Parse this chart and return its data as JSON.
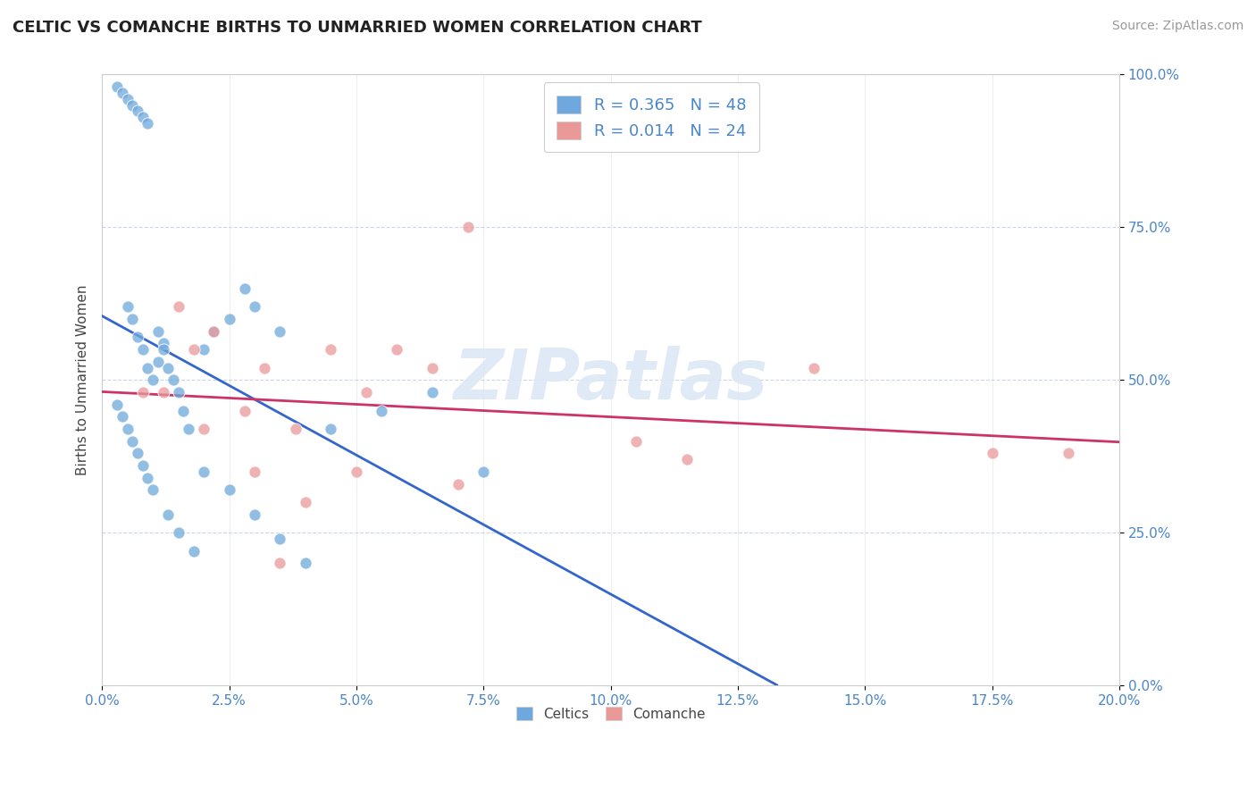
{
  "title": "CELTIC VS COMANCHE BIRTHS TO UNMARRIED WOMEN CORRELATION CHART",
  "source": "Source: ZipAtlas.com",
  "ylabel": "Births to Unmarried Women",
  "xlim": [
    0.0,
    20.0
  ],
  "ylim": [
    0.0,
    100.0
  ],
  "xticks": [
    0.0,
    2.5,
    5.0,
    7.5,
    10.0,
    12.5,
    15.0,
    17.5,
    20.0
  ],
  "yticks": [
    0.0,
    25.0,
    50.0,
    75.0,
    100.0
  ],
  "celtics_color": "#6fa8dc",
  "comanche_color": "#ea9999",
  "celtics_line_color": "#3366cc",
  "comanche_line_color": "#cc3366",
  "legend_celtics_R": "R = 0.365",
  "legend_celtics_N": "N = 48",
  "legend_comanche_R": "R = 0.014",
  "legend_comanche_N": "N = 24",
  "watermark": "ZIPatlas",
  "celtics_x": [
    0.3,
    0.4,
    0.5,
    0.6,
    0.7,
    0.8,
    0.9,
    0.5,
    0.6,
    0.7,
    0.8,
    0.9,
    1.0,
    1.1,
    1.2,
    0.3,
    0.4,
    0.5,
    0.6,
    0.7,
    0.8,
    0.9,
    1.0,
    1.1,
    1.2,
    1.3,
    1.4,
    1.5,
    1.6,
    1.7,
    2.0,
    2.2,
    2.5,
    2.8,
    3.0,
    3.5,
    4.5,
    5.5,
    6.5,
    7.5,
    1.3,
    1.5,
    1.8,
    2.0,
    2.5,
    3.0,
    3.5,
    4.0
  ],
  "celtics_y": [
    98,
    97,
    96,
    95,
    94,
    93,
    92,
    62,
    60,
    57,
    55,
    52,
    50,
    53,
    56,
    46,
    44,
    42,
    40,
    38,
    36,
    34,
    32,
    58,
    55,
    52,
    50,
    48,
    45,
    42,
    55,
    58,
    60,
    65,
    62,
    58,
    42,
    45,
    48,
    35,
    28,
    25,
    22,
    35,
    32,
    28,
    24,
    20
  ],
  "comanche_x": [
    0.8,
    1.5,
    1.8,
    2.2,
    2.8,
    3.2,
    3.8,
    4.5,
    5.2,
    5.8,
    6.5,
    7.2,
    10.5,
    11.5,
    14.0,
    17.5,
    19.0,
    3.0,
    2.0,
    1.2,
    4.0,
    5.0,
    7.0,
    3.5
  ],
  "comanche_y": [
    48,
    62,
    55,
    58,
    45,
    52,
    42,
    55,
    48,
    55,
    52,
    75,
    40,
    37,
    52,
    38,
    38,
    35,
    42,
    48,
    30,
    35,
    33,
    20
  ]
}
